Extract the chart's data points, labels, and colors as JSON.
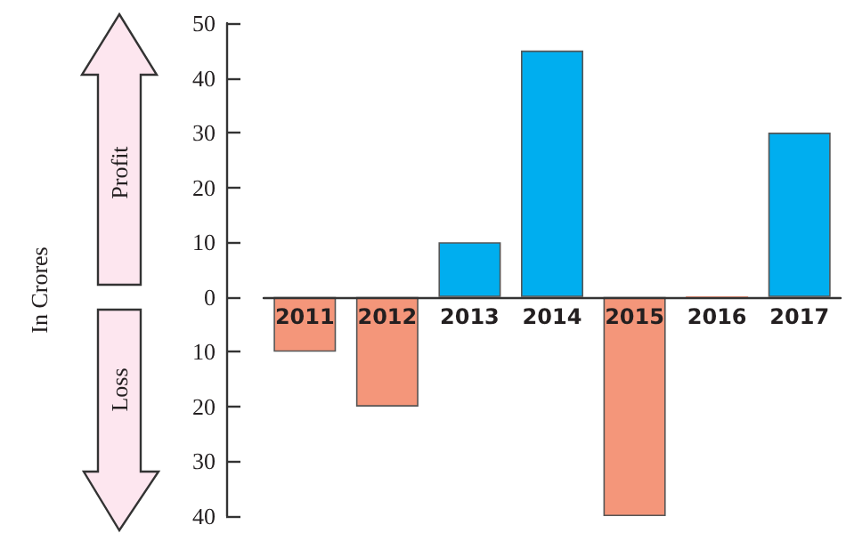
{
  "chart_data": {
    "type": "bar",
    "categories": [
      "2011",
      "2012",
      "2013",
      "2014",
      "2015",
      "2016",
      "2017"
    ],
    "values": [
      -10,
      -20,
      10,
      45,
      -40,
      0,
      30
    ],
    "colors": [
      "#f4967a",
      "#f4967a",
      "#00aeef",
      "#00aeef",
      "#f4967a",
      "#f4967a",
      "#00aeef"
    ],
    "ylim": [
      -40,
      50
    ],
    "yticks": [
      {
        "value": -40,
        "label": "40"
      },
      {
        "value": -30,
        "label": "30"
      },
      {
        "value": -20,
        "label": "20"
      },
      {
        "value": -10,
        "label": "10"
      },
      0,
      10,
      20,
      30,
      40,
      50
    ],
    "grid": false,
    "annotations": [
      "Profit",
      "Loss",
      "In Crores"
    ]
  }
}
